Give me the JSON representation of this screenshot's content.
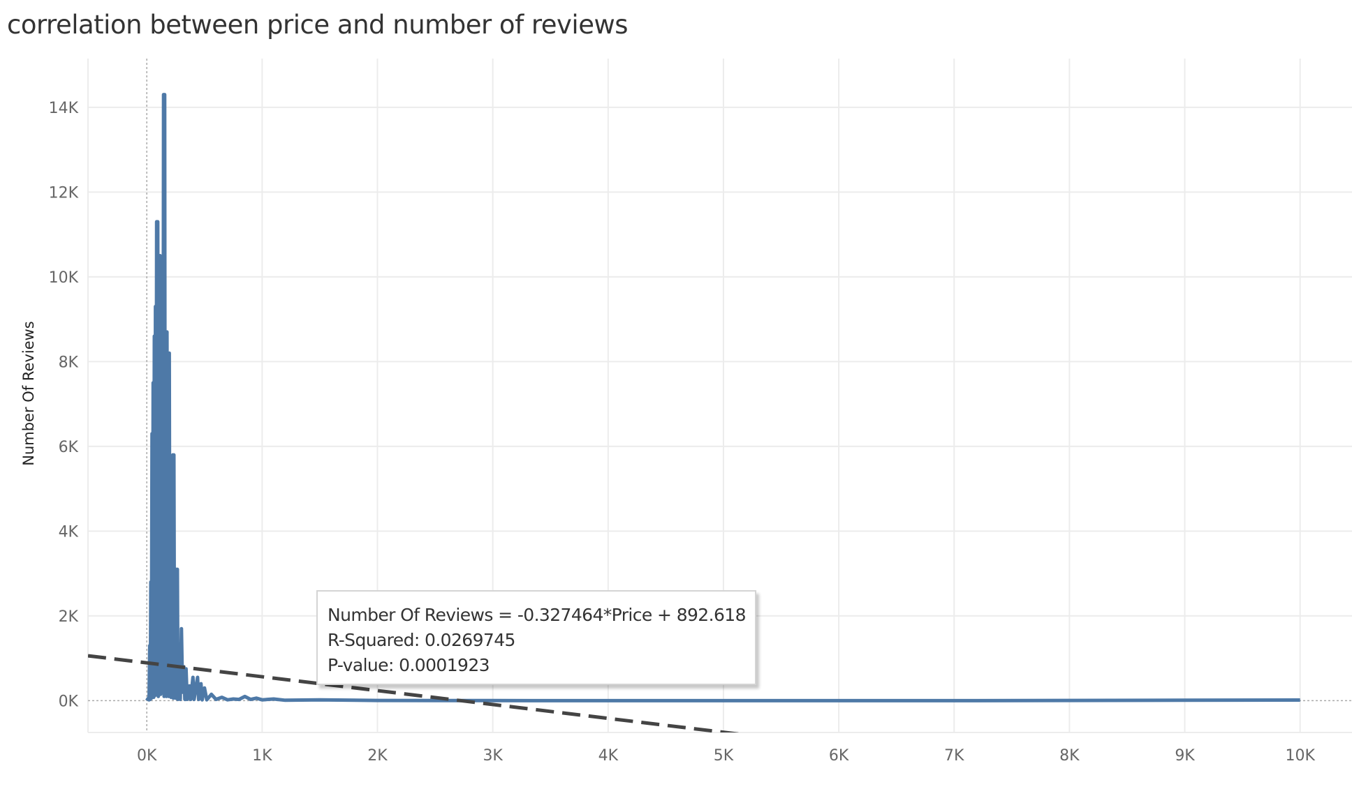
{
  "title": "correlation between price and number of reviews",
  "chart_data": {
    "type": "line",
    "title": "correlation between price and number of reviews",
    "xlabel": "",
    "ylabel": "Number Of Reviews",
    "xlim": [
      -510,
      10450
    ],
    "ylim": [
      -750,
      15150
    ],
    "x_ticks": [
      0,
      1000,
      2000,
      3000,
      4000,
      5000,
      6000,
      7000,
      8000,
      9000,
      10000
    ],
    "x_tick_labels": [
      "0K",
      "1K",
      "2K",
      "3K",
      "4K",
      "5K",
      "6K",
      "7K",
      "8K",
      "9K",
      "10K"
    ],
    "y_ticks": [
      0,
      2000,
      4000,
      6000,
      8000,
      10000,
      12000,
      14000
    ],
    "y_tick_labels": [
      "0K",
      "2K",
      "4K",
      "6K",
      "8K",
      "10K",
      "12K",
      "14K"
    ],
    "grid": true,
    "colors": {
      "series": "#4e79a7",
      "trend": "#444444",
      "grid": "#ececec"
    },
    "series": [
      {
        "points": [
          [
            0,
            0
          ],
          [
            10,
            50
          ],
          [
            20,
            20
          ],
          [
            25,
            1300
          ],
          [
            30,
            30
          ],
          [
            35,
            2800
          ],
          [
            40,
            60
          ],
          [
            45,
            6300
          ],
          [
            50,
            100
          ],
          [
            55,
            7500
          ],
          [
            60,
            80
          ],
          [
            65,
            8600
          ],
          [
            70,
            120
          ],
          [
            75,
            9300
          ],
          [
            80,
            150
          ],
          [
            85,
            11300
          ],
          [
            90,
            200
          ],
          [
            95,
            11300
          ],
          [
            100,
            100
          ],
          [
            105,
            10500
          ],
          [
            110,
            300
          ],
          [
            115,
            10500
          ],
          [
            120,
            150
          ],
          [
            130,
            8700
          ],
          [
            140,
            200
          ],
          [
            145,
            14300
          ],
          [
            150,
            100
          ],
          [
            155,
            14300
          ],
          [
            160,
            300
          ],
          [
            165,
            8700
          ],
          [
            170,
            100
          ],
          [
            175,
            8700
          ],
          [
            180,
            200
          ],
          [
            185,
            8200
          ],
          [
            190,
            100
          ],
          [
            195,
            8200
          ],
          [
            200,
            150
          ],
          [
            205,
            4400
          ],
          [
            210,
            80
          ],
          [
            215,
            4400
          ],
          [
            220,
            100
          ],
          [
            225,
            5800
          ],
          [
            230,
            60
          ],
          [
            235,
            5800
          ],
          [
            240,
            80
          ],
          [
            245,
            2200
          ],
          [
            250,
            60
          ],
          [
            255,
            3100
          ],
          [
            260,
            50
          ],
          [
            265,
            3100
          ],
          [
            270,
            30
          ],
          [
            280,
            1300
          ],
          [
            290,
            30
          ],
          [
            300,
            1700
          ],
          [
            310,
            200
          ],
          [
            320,
            800
          ],
          [
            330,
            30
          ],
          [
            340,
            750
          ],
          [
            350,
            30
          ],
          [
            370,
            350
          ],
          [
            380,
            30
          ],
          [
            400,
            550
          ],
          [
            410,
            30
          ],
          [
            440,
            550
          ],
          [
            450,
            30
          ],
          [
            470,
            400
          ],
          [
            480,
            20
          ],
          [
            500,
            300
          ],
          [
            520,
            20
          ],
          [
            560,
            150
          ],
          [
            600,
            30
          ],
          [
            650,
            80
          ],
          [
            700,
            20
          ],
          [
            750,
            40
          ],
          [
            800,
            30
          ],
          [
            850,
            100
          ],
          [
            900,
            30
          ],
          [
            950,
            60
          ],
          [
            1000,
            20
          ],
          [
            1100,
            40
          ],
          [
            1200,
            10
          ],
          [
            1500,
            20
          ],
          [
            2000,
            5
          ],
          [
            3000,
            2
          ],
          [
            5000,
            1
          ],
          [
            7000,
            1
          ],
          [
            8000,
            5
          ],
          [
            9000,
            10
          ],
          [
            10000,
            15
          ]
        ]
      }
    ],
    "trend_line": {
      "slope": -0.327464,
      "intercept": 892.618,
      "style": "dashed"
    },
    "annotation": {
      "equation": "Number Of Reviews = -0.327464*Price + 892.618",
      "r_squared": "R-Squared: 0.0269745",
      "p_value": "P-value: 0.0001923"
    }
  }
}
